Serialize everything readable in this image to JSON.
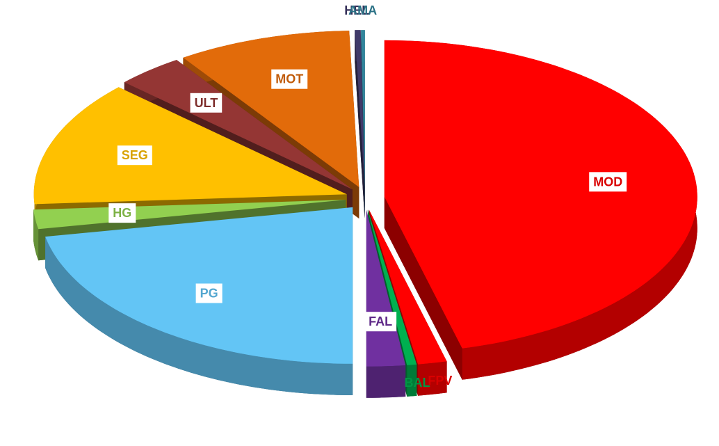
{
  "chart_data": {
    "type": "pie",
    "categories": [
      "MOD",
      "FPV",
      "BAL",
      "FAL",
      "PG",
      "HG",
      "SEG",
      "ULT",
      "MOT",
      "HEL",
      "AMA"
    ],
    "values": [
      46,
      1.5,
      0.5,
      2,
      22,
      2,
      13,
      3.5,
      9,
      0.3,
      0.2
    ],
    "colors": [
      "#ff0000",
      "#ff0000",
      "#00b050",
      "#7030a0",
      "#63c5f5",
      "#92d050",
      "#ffc000",
      "#943634",
      "#e26b0a",
      "#403a6a",
      "#31859c"
    ]
  }
}
